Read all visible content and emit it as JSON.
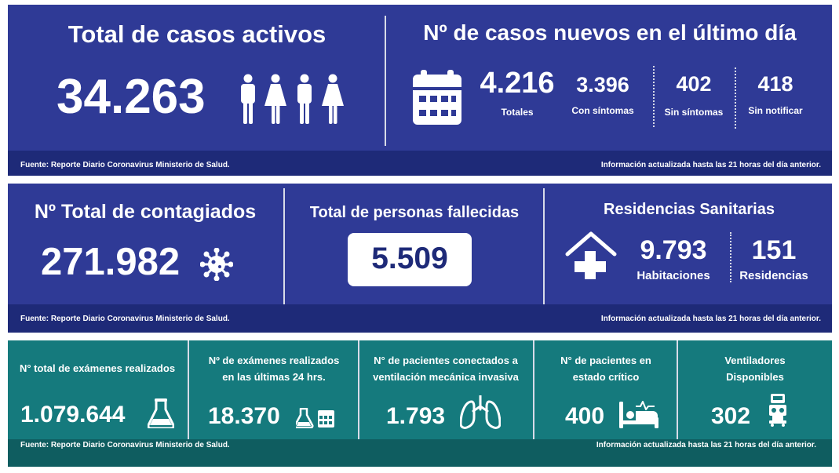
{
  "section1": {
    "active": {
      "title": "Total de casos activos",
      "value": "34.263",
      "icon": "people-icon"
    },
    "new_cases": {
      "title": "Nº de casos nuevos en el último día",
      "icon": "calendar-icon",
      "total": {
        "value": "4.216",
        "label": "Totales"
      },
      "symptoms": {
        "value": "3.396",
        "label": "Con síntomas"
      },
      "no_symptoms": {
        "value": "402",
        "label": "Sin síntomas"
      },
      "unreported": {
        "value": "418",
        "label": "Sin notificar"
      }
    },
    "footer": {
      "source": "Fuente: Reporte Diario Coronavirus Ministerio de Salud.",
      "updated": "Información actualizada hasta las 21 horas  del día anterior."
    }
  },
  "section2": {
    "contagiados": {
      "title": "Nº Total de contagiados",
      "value": "271.982",
      "icon": "virus-icon"
    },
    "fallecidas": {
      "title": "Total de personas fallecidas",
      "value": "5.509"
    },
    "residencias": {
      "title": "Residencias Sanitarias",
      "icon": "house-medical-icon",
      "rooms": {
        "value": "9.793",
        "label": "Habitaciones"
      },
      "residences": {
        "value": "151",
        "label": "Residencias"
      }
    },
    "footer": {
      "source": "Fuente: Reporte Diario Coronavirus Ministerio de Salud.",
      "updated": "Información actualizada hasta las 21 horas  del día anterior."
    }
  },
  "section3": {
    "exams_total": {
      "title": "N° total de exámenes realizados",
      "value": "1.079.644",
      "icon": "flask-icon"
    },
    "exams_24h": {
      "title_line1": "Nº de exámenes realizados",
      "title_line2": "en las últimas 24 hrs.",
      "value": "18.370",
      "icon": "flask-calendar-icon"
    },
    "ventilated": {
      "title_line1": "N° de pacientes conectados a",
      "title_line2": "ventilación mecánica invasiva",
      "value": "1.793",
      "icon": "lungs-icon"
    },
    "critical": {
      "title_line1": "N° de pacientes  en",
      "title_line2": "estado crítico",
      "value": "400",
      "icon": "hospital-bed-icon"
    },
    "ventilators": {
      "title_line1": "Ventiladores",
      "title_line2": "Disponibles",
      "value": "302",
      "icon": "ventilator-icon"
    },
    "footer": {
      "source": "Fuente: Reporte Diario Coronavirus Ministerio de Salud.",
      "updated": "Información actualizada hasta las 21 horas  del día anterior."
    }
  },
  "colors": {
    "blue": "#2f3a96",
    "blue_footer": "#1e2a78",
    "teal": "#157a7d",
    "teal_footer": "#0f5d60"
  }
}
